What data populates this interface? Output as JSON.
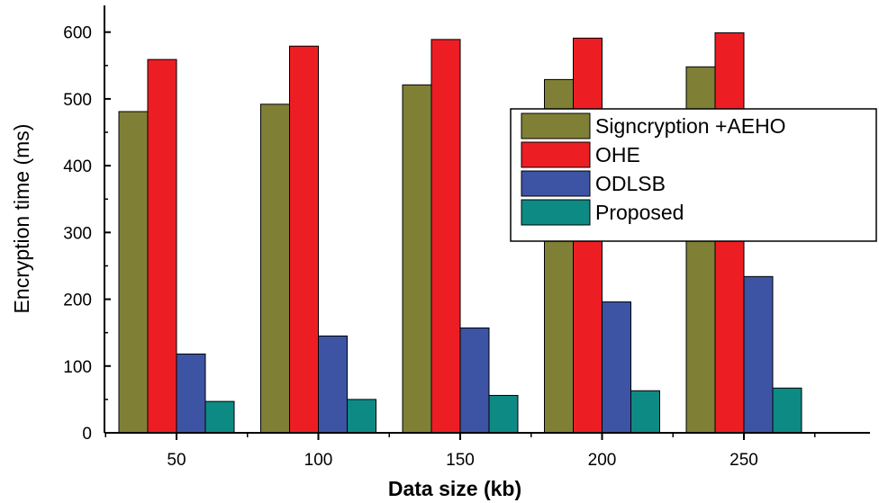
{
  "chart_data": {
    "type": "bar",
    "title": "",
    "xlabel": "Data size (kb)",
    "ylabel": "Encryption time (ms)",
    "categories": [
      "50",
      "100",
      "150",
      "200",
      "250"
    ],
    "ylim": [
      0,
      640
    ],
    "yticks": [
      0,
      100,
      200,
      300,
      400,
      500,
      600
    ],
    "legend_position": "right",
    "series": [
      {
        "name": "Signcryption +AEHO",
        "color": "#7f8036",
        "values": [
          481,
          492,
          521,
          529,
          548
        ]
      },
      {
        "name": "OHE",
        "color": "#ec1e24",
        "values": [
          559,
          579,
          589,
          591,
          599
        ]
      },
      {
        "name": "ODLSB",
        "color": "#3d54a4",
        "values": [
          118,
          145,
          157,
          196,
          234
        ]
      },
      {
        "name": "Proposed",
        "color": "#0e8a84",
        "values": [
          47,
          50,
          56,
          63,
          67
        ]
      }
    ]
  }
}
